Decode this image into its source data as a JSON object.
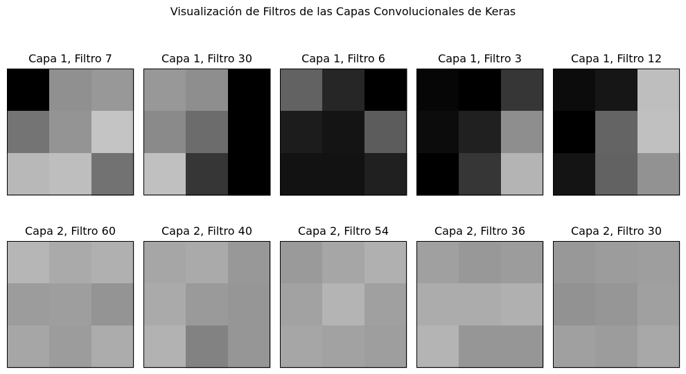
{
  "figure": {
    "suptitle": "Visualización de Filtros de las Capas Convolucionales de Keras"
  },
  "chart_data": [
    {
      "type": "heatmap",
      "title": "Capa 1, Filtro 7",
      "layer": 1,
      "filter": 7,
      "colormap": "gray",
      "values": [
        [
          0,
          144,
          152
        ],
        [
          116,
          148,
          196
        ],
        [
          184,
          190,
          114
        ]
      ]
    },
    {
      "type": "heatmap",
      "title": "Capa 1, Filtro 30",
      "layer": 1,
      "filter": 30,
      "colormap": "gray",
      "values": [
        [
          152,
          142,
          0
        ],
        [
          138,
          108,
          0
        ],
        [
          192,
          54,
          0
        ]
      ]
    },
    {
      "type": "heatmap",
      "title": "Capa 1, Filtro 6",
      "layer": 1,
      "filter": 6,
      "colormap": "gray",
      "values": [
        [
          98,
          38,
          0
        ],
        [
          28,
          20,
          92
        ],
        [
          18,
          18,
          32
        ]
      ]
    },
    {
      "type": "heatmap",
      "title": "Capa 1, Filtro 3",
      "layer": 1,
      "filter": 3,
      "colormap": "gray",
      "values": [
        [
          6,
          0,
          54
        ],
        [
          12,
          32,
          142
        ],
        [
          0,
          54,
          180
        ]
      ]
    },
    {
      "type": "heatmap",
      "title": "Capa 1, Filtro 12",
      "layer": 1,
      "filter": 12,
      "colormap": "gray",
      "values": [
        [
          12,
          22,
          190
        ],
        [
          0,
          100,
          192
        ],
        [
          20,
          98,
          146
        ]
      ]
    },
    {
      "type": "heatmap",
      "title": "Capa 2, Filtro 60",
      "layer": 2,
      "filter": 60,
      "colormap": "gray",
      "values": [
        [
          182,
          170,
          176
        ],
        [
          156,
          158,
          148
        ],
        [
          166,
          156,
          172
        ]
      ]
    },
    {
      "type": "heatmap",
      "title": "Capa 2, Filtro 40",
      "layer": 2,
      "filter": 40,
      "colormap": "gray",
      "values": [
        [
          166,
          170,
          152
        ],
        [
          170,
          154,
          150
        ],
        [
          178,
          130,
          150
        ]
      ]
    },
    {
      "type": "heatmap",
      "title": "Capa 2, Filtro 54",
      "layer": 2,
      "filter": 54,
      "colormap": "gray",
      "values": [
        [
          154,
          166,
          176
        ],
        [
          162,
          180,
          160
        ],
        [
          166,
          162,
          158
        ]
      ]
    },
    {
      "type": "heatmap",
      "title": "Capa 2, Filtro 36",
      "layer": 2,
      "filter": 36,
      "colormap": "gray",
      "values": [
        [
          160,
          152,
          156
        ],
        [
          172,
          172,
          176
        ],
        [
          180,
          150,
          150
        ]
      ]
    },
    {
      "type": "heatmap",
      "title": "Capa 2, Filtro 30",
      "layer": 2,
      "filter": 30,
      "colormap": "gray",
      "values": [
        [
          152,
          156,
          158
        ],
        [
          146,
          150,
          160
        ],
        [
          160,
          156,
          168
        ]
      ]
    }
  ]
}
